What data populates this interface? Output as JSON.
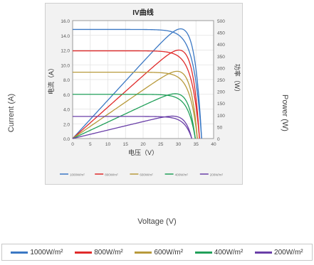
{
  "chart_data": {
    "type": "line",
    "title": "IV曲线",
    "xlabel": "电压（V）",
    "ylabel_left": "电流（A）",
    "ylabel_right": "功率（W）",
    "outer_xlabel": "Voltage (V)",
    "outer_ylabel_left": "Current (A)",
    "outer_ylabel_right": "Power (W)",
    "x_ticks": [
      "0",
      "5",
      "10",
      "15",
      "20",
      "25",
      "30",
      "35",
      "40"
    ],
    "xlim": [
      0,
      40
    ],
    "y_left_ticks": [
      "0.0",
      "2.0",
      "4.0",
      "6.0",
      "8.0",
      "10.0",
      "12.0",
      "14.0",
      "16.0"
    ],
    "ylim_left": [
      0,
      16
    ],
    "y_right_ticks": [
      "0",
      "50",
      "100",
      "150",
      "200",
      "250",
      "300",
      "350",
      "400",
      "450",
      "500"
    ],
    "ylim_right": [
      0,
      500
    ],
    "grid": true,
    "legend_position": "bottom",
    "series": [
      {
        "name": "1000W/m²",
        "color": "#3b78c4",
        "isc": 14.8,
        "voc": 36.6,
        "pmax_v": 30.6,
        "pmax": 465
      },
      {
        "name": "800W/m²",
        "color": "#e02b2b",
        "isc": 11.9,
        "voc": 36.0,
        "pmax_v": 30.6,
        "pmax": 375
      },
      {
        "name": "600W/m²",
        "color": "#b89a3c",
        "isc": 9.0,
        "voc": 35.4,
        "pmax_v": 30.4,
        "pmax": 285
      },
      {
        "name": "400W/m²",
        "color": "#22a05a",
        "isc": 6.0,
        "voc": 34.8,
        "pmax_v": 30.2,
        "pmax": 190
      },
      {
        "name": "200W/m²",
        "color": "#6a3fa8",
        "isc": 3.0,
        "voc": 33.8,
        "pmax_v": 29.8,
        "pmax": 95
      }
    ]
  }
}
